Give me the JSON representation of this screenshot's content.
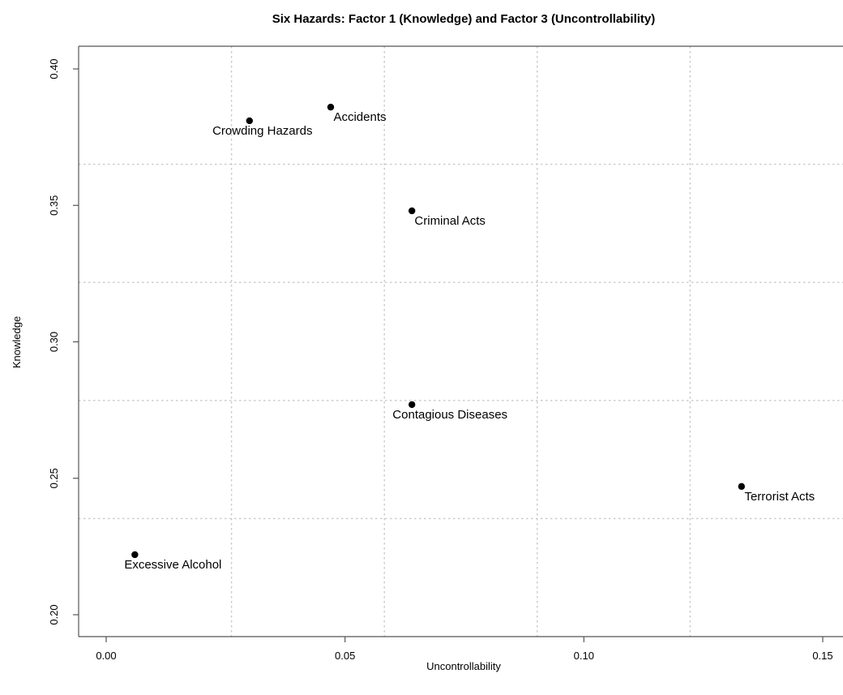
{
  "chart_data": {
    "type": "scatter",
    "title": "Six Hazards: Factor 1 (Knowledge) and Factor 3 (Uncontrollability)",
    "xlabel": "Uncontrollability",
    "ylabel": "Knowledge",
    "xlim": [
      0.0,
      0.15
    ],
    "ylim": [
      0.2,
      0.4
    ],
    "x_ticks": [
      0.0,
      0.05,
      0.1,
      0.15
    ],
    "x_tick_labels": [
      "0.00",
      "0.05",
      "0.10",
      "0.15"
    ],
    "y_ticks": [
      0.2,
      0.25,
      0.3,
      0.35,
      0.4
    ],
    "y_tick_labels": [
      "0.20",
      "0.25",
      "0.30",
      "0.35",
      "0.40"
    ],
    "grid": true,
    "point_color": "#000000",
    "points": [
      {
        "label": "Accidents",
        "x": 0.047,
        "y": 0.386
      },
      {
        "label": "Crowding Hazards",
        "x": 0.03,
        "y": 0.381
      },
      {
        "label": "Criminal Acts",
        "x": 0.064,
        "y": 0.348
      },
      {
        "label": "Contagious Diseases",
        "x": 0.064,
        "y": 0.277
      },
      {
        "label": "Terrorist Acts",
        "x": 0.133,
        "y": 0.247
      },
      {
        "label": "Excessive Alcohol",
        "x": 0.006,
        "y": 0.222
      }
    ]
  }
}
